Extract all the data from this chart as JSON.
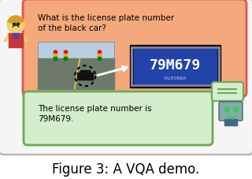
{
  "title": "Figure 3: A VQA demo.",
  "title_fontsize": 12,
  "bg_color": "#ffffff",
  "user_bubble_color": "#f4a87c",
  "user_bubble_edge": "#e05555",
  "bot_bubble_color": "#d4edcc",
  "bot_bubble_edge": "#6aaa55",
  "question_text": "What is the license plate number\nof the black car?",
  "answer_text": "The license plate number is\n79M679.",
  "plate_text": "79M679",
  "text_fontsize": 7.5,
  "plate_fontsize": 10
}
